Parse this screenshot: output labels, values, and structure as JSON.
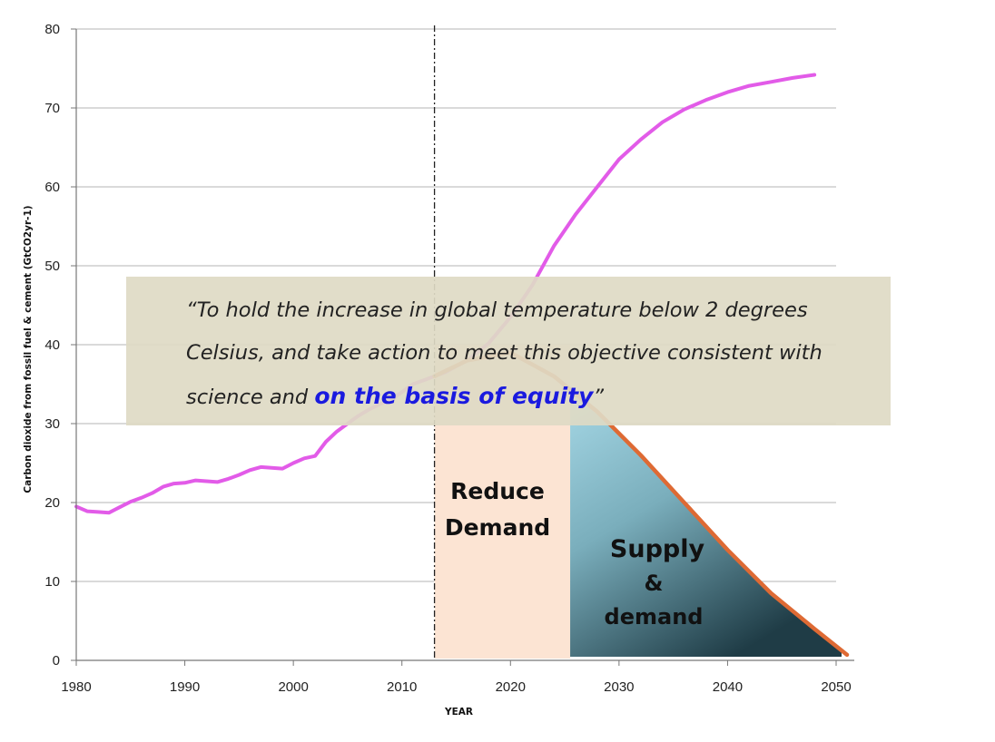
{
  "chart_data": {
    "type": "line",
    "xlabel": "YEAR",
    "ylabel": "Carbon dioxide from fossil fuel & cement (GtCO2yr-1)",
    "xlim": [
      1980,
      2050
    ],
    "ylim": [
      0,
      80
    ],
    "x_ticks": [
      "1980",
      "1990",
      "2000",
      "2010",
      "2020",
      "2030",
      "2040",
      "2050"
    ],
    "y_ticks": [
      "0",
      "10",
      "20",
      "30",
      "40",
      "50",
      "60",
      "70",
      "80"
    ],
    "grid": "horizontal",
    "vertical_marker_year": 2013,
    "series": [
      {
        "color": "#e25be8",
        "x": [
          1980,
          1981,
          1982,
          1983,
          1984,
          1985,
          1986,
          1987,
          1988,
          1989,
          1990,
          1991,
          1992,
          1993,
          1994,
          1995,
          1996,
          1997,
          1998,
          1999,
          2000,
          2001,
          2002,
          2003,
          2004,
          2005,
          2006,
          2007,
          2008,
          2009,
          2010,
          2011,
          2012,
          2013,
          2014,
          2016,
          2018,
          2020,
          2022,
          2024,
          2026,
          2028,
          2030,
          2032,
          2034,
          2036,
          2038,
          2040,
          2042,
          2044,
          2046,
          2048
        ],
        "y": [
          19.5,
          18.9,
          18.8,
          18.7,
          19.4,
          20.1,
          20.6,
          21.2,
          22.0,
          22.4,
          22.5,
          22.8,
          22.7,
          22.6,
          23.0,
          23.5,
          24.1,
          24.5,
          24.4,
          24.3,
          25.0,
          25.6,
          25.9,
          27.7,
          29.0,
          30.0,
          31.0,
          31.8,
          32.5,
          33.0,
          34.0,
          35.0,
          35.5,
          36.0,
          36.5,
          38.0,
          40.2,
          43.5,
          47.5,
          52.5,
          56.5,
          60.0,
          63.5,
          66.0,
          68.2,
          69.8,
          71.0,
          72.0,
          72.8,
          73.3,
          73.8,
          74.2
        ]
      },
      {
        "color": "#de6a34",
        "x": [
          2013,
          2016,
          2020,
          2024,
          2028,
          2032,
          2036,
          2040,
          2044,
          2048,
          2051
        ],
        "y": [
          36.0,
          38.0,
          39.0,
          36.0,
          31.5,
          26.0,
          20.0,
          14.0,
          8.5,
          4.0,
          0.7
        ]
      }
    ],
    "regions": [
      {
        "label_line1": "Reduce",
        "label_line2": "Demand",
        "from": 2013,
        "to": 2025.5,
        "color": "#fce4d3"
      },
      {
        "label_line1": "Supply",
        "label_line2": "&",
        "label_line3": "demand",
        "from": 2025.5,
        "to": 2051,
        "color_top": "#a6d8e6",
        "color_bottom": "#1f3c46"
      }
    ]
  },
  "quote": {
    "line1": "“To hold the increase in global temperature below 2 degrees",
    "line2": "Celsius, and take action to meet this objective consistent with",
    "line3_prefix": "science and",
    "emphasis": "on the basis of equity",
    "closing": "”"
  }
}
